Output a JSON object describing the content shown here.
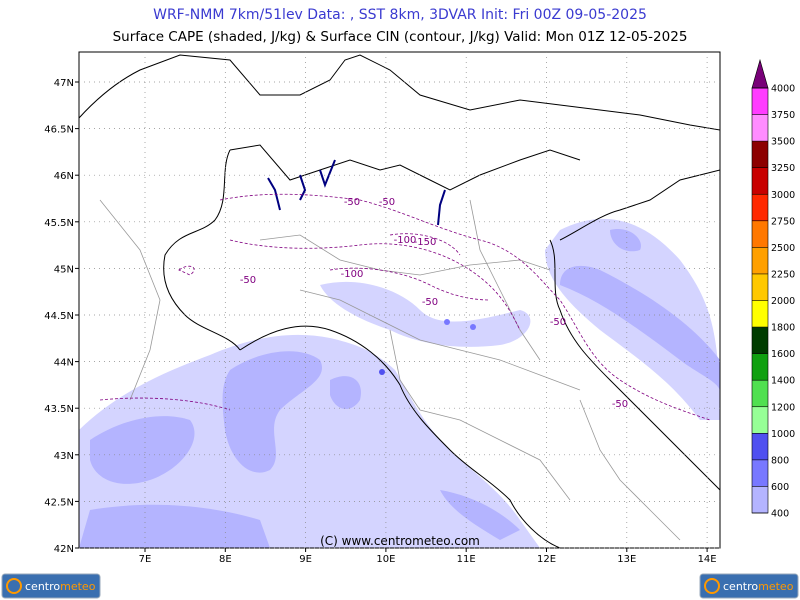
{
  "header": {
    "line1": "WRF-NMM 7km/51lev  Data: , SST 8km, 3DVAR  Init: Fri 00Z 09-05-2025",
    "line2": "Surface CAPE (shaded, J/kg) & Surface CIN (contour, J/kg)  Valid: Mon 01Z 12-05-2025"
  },
  "map": {
    "lat_labels": [
      "47N",
      "46.5N",
      "46N",
      "45.5N",
      "45N",
      "44.5N",
      "44N",
      "43.5N",
      "43N",
      "42.5N",
      "42N"
    ],
    "lon_labels": [
      "7E",
      "8E",
      "9E",
      "10E",
      "11E",
      "12E",
      "13E",
      "14E"
    ],
    "contour_labels": [
      "-50",
      "-50",
      "-100",
      "-150",
      "-50",
      "-100",
      "-50",
      "-50",
      "-50"
    ],
    "copyright": "(C) www.centrometeo.com"
  },
  "colorbar": {
    "labels": [
      "400",
      "600",
      "800",
      "1000",
      "1200",
      "1400",
      "1600",
      "1800",
      "2000",
      "2250",
      "2500",
      "2750",
      "3000",
      "3250",
      "3500",
      "3750",
      "4000"
    ],
    "colors": [
      "#d4d4ff",
      "#b4b4ff",
      "#7878ff",
      "#5050f0",
      "#96ff96",
      "#50e050",
      "#10a010",
      "#003c00",
      "#ffff00",
      "#ffc800",
      "#ffa000",
      "#ff7800",
      "#ff2800",
      "#c80000",
      "#8c0000",
      "#ff8cff",
      "#ff3cff",
      "#c800c8",
      "#780078"
    ]
  },
  "logo": {
    "part1": "centro",
    "part2": "meteo"
  }
}
